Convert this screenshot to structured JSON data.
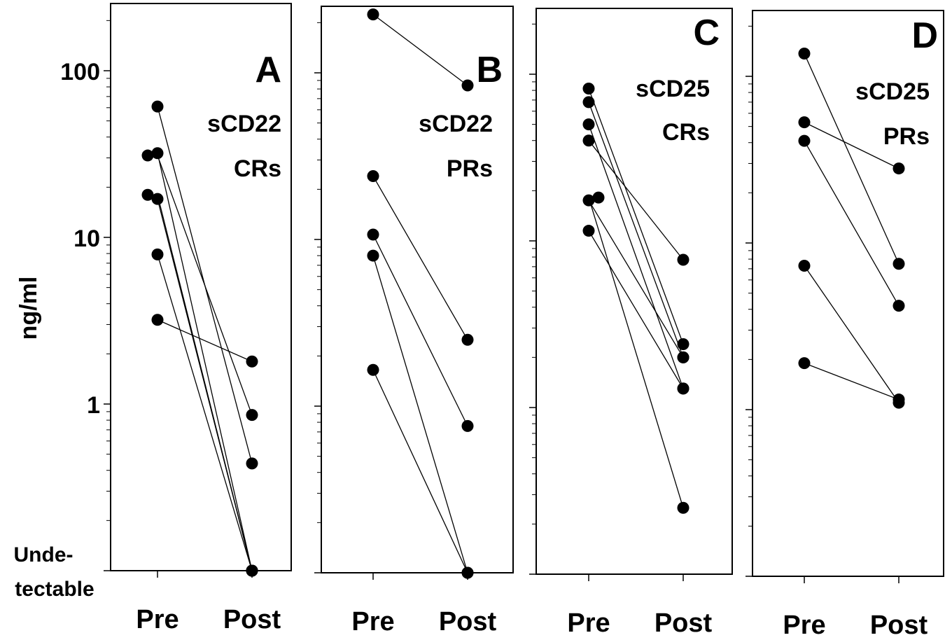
{
  "ylabel": "ng/ml",
  "y_tick_labels": [
    "100",
    "10",
    "1"
  ],
  "undetectable_label": [
    "Unde-",
    "tectable"
  ],
  "chart_data": [
    {
      "type": "line",
      "panel_letter": "A",
      "marker": "sCD22",
      "group": "CRs",
      "categories": [
        "Pre",
        "Post"
      ],
      "yscale": "log",
      "ylim": [
        0.1,
        250
      ],
      "undetectable_floor": 0.1,
      "subjects": [
        [
          61,
          0.44
        ],
        [
          31,
          0.86
        ],
        [
          32,
          0.1
        ],
        [
          17,
          0.1
        ],
        [
          18,
          0.1
        ],
        [
          7.9,
          0.1
        ],
        [
          3.2,
          1.8
        ]
      ]
    },
    {
      "type": "line",
      "panel_letter": "B",
      "marker": "sCD22",
      "group": "PRs",
      "categories": [
        "Pre",
        "Post"
      ],
      "yscale": "log",
      "ylim": [
        0.1,
        250
      ],
      "undetectable_floor": 0.1,
      "subjects": [
        [
          224,
          84
        ],
        [
          24,
          2.5
        ],
        [
          10.7,
          0.76
        ],
        [
          8,
          0.1
        ],
        [
          1.65,
          0.1
        ]
      ]
    },
    {
      "type": "line",
      "panel_letter": "C",
      "marker": "sCD25",
      "group": "CRs",
      "categories": [
        "Pre",
        "Post"
      ],
      "yscale": "log",
      "ylim": [
        0.1,
        250
      ],
      "undetectable_floor": 0.1,
      "subjects": [
        [
          82,
          2.4
        ],
        [
          68,
          2.0
        ],
        [
          50,
          1.3
        ],
        [
          40,
          7.7
        ],
        [
          18.2,
          0.25
        ],
        [
          17.5,
          2.0
        ],
        [
          11.5,
          1.3
        ]
      ]
    },
    {
      "type": "line",
      "panel_letter": "D",
      "marker": "sCD25",
      "group": "PRs",
      "categories": [
        "Pre",
        "Post"
      ],
      "yscale": "log",
      "ylim": [
        0.1,
        250
      ],
      "undetectable_floor": 0.1,
      "subjects": [
        [
          137,
          7.5
        ],
        [
          53,
          28
        ],
        [
          41,
          4.2
        ],
        [
          7.3,
          1.1
        ],
        [
          1.9,
          1.15
        ]
      ]
    }
  ]
}
